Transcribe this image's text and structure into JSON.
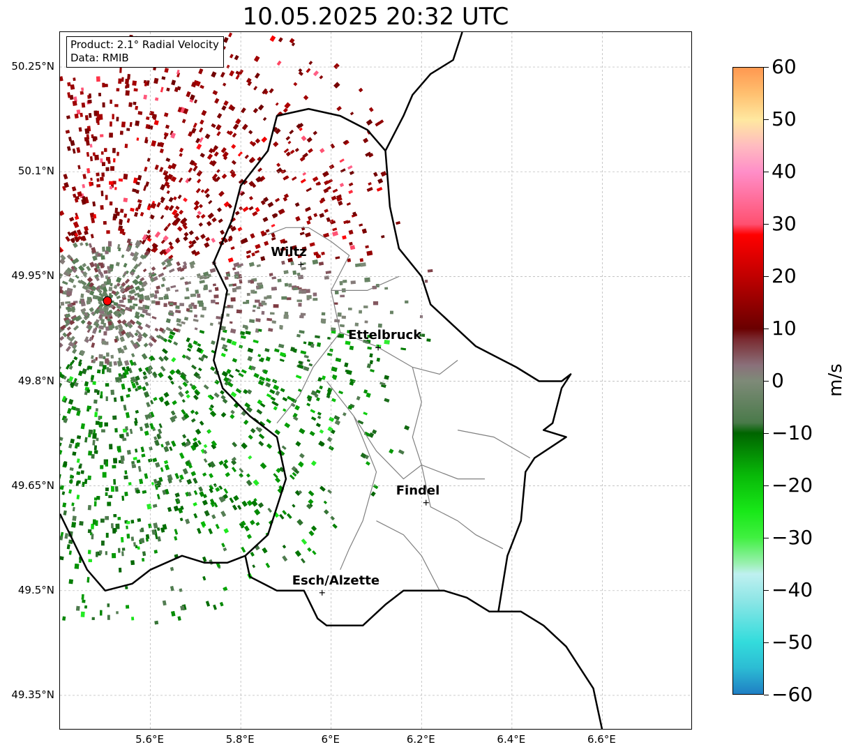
{
  "title": "10.05.2025 20:32 UTC",
  "info": {
    "product": "Product: 2.1° Radial Velocity",
    "source": "Data: RMIB"
  },
  "lat_labels": [
    "50.25°N",
    "50.1°N",
    "49.95°N",
    "49.8°N",
    "49.65°N",
    "49.5°N",
    "49.35°N"
  ],
  "lat_values": [
    50.25,
    50.1,
    49.95,
    49.8,
    49.65,
    49.5,
    49.35
  ],
  "lon_labels": [
    "5.6°E",
    "5.8°E",
    "6°E",
    "6.2°E",
    "6.4°E",
    "6.6°E"
  ],
  "lon_values": [
    5.6,
    5.8,
    6.0,
    6.2,
    6.4,
    6.6
  ],
  "extent": {
    "lon_min": 5.4,
    "lon_max": 6.8,
    "lat_min": 49.3,
    "lat_max": 50.3
  },
  "radar_site": {
    "lon": 5.505,
    "lat": 49.915,
    "color": "#ff0000"
  },
  "cities": [
    {
      "name": "Wiltz",
      "lon": 5.933,
      "lat": 49.967
    },
    {
      "name": "Ettelbruck",
      "lon": 6.104,
      "lat": 49.848
    },
    {
      "name": "Findel",
      "lon": 6.21,
      "lat": 49.626
    },
    {
      "name": "Esch/Alzette",
      "lon": 5.98,
      "lat": 49.497
    }
  ],
  "colorbar": {
    "unit": "m/s",
    "min": -60,
    "max": 60,
    "tick_labels": [
      "60",
      "50",
      "40",
      "30",
      "20",
      "10",
      "0",
      "−10",
      "−20",
      "−30",
      "−40",
      "−50",
      "−60"
    ],
    "tick_values": [
      60,
      50,
      40,
      30,
      20,
      10,
      0,
      -10,
      -20,
      -30,
      -40,
      -50,
      -60
    ],
    "stops": [
      {
        "v": -60,
        "c": "#1f7fc4"
      },
      {
        "v": -55,
        "c": "#2cbcd4"
      },
      {
        "v": -50,
        "c": "#33dcdc"
      },
      {
        "v": -42,
        "c": "#8ee6e6"
      },
      {
        "v": -37,
        "c": "#bff0f0"
      },
      {
        "v": -35,
        "c": "#9af0b0"
      },
      {
        "v": -30,
        "c": "#40f040"
      },
      {
        "v": -25,
        "c": "#18e818"
      },
      {
        "v": -18,
        "c": "#08b808"
      },
      {
        "v": -10,
        "c": "#006400"
      },
      {
        "v": -8,
        "c": "#4a7a4a"
      },
      {
        "v": 0,
        "c": "#7e8a78"
      },
      {
        "v": 3,
        "c": "#8a707a"
      },
      {
        "v": 8,
        "c": "#7a2a30"
      },
      {
        "v": 10,
        "c": "#6a0000"
      },
      {
        "v": 20,
        "c": "#c00000"
      },
      {
        "v": 28,
        "c": "#ff0000"
      },
      {
        "v": 30,
        "c": "#ff5070"
      },
      {
        "v": 40,
        "c": "#ff8ec8"
      },
      {
        "v": 45,
        "c": "#ffbbc0"
      },
      {
        "v": 50,
        "c": "#ffe8a0"
      },
      {
        "v": 55,
        "c": "#ffc070"
      },
      {
        "v": 60,
        "c": "#ff9850"
      }
    ]
  },
  "borders": {
    "country": [
      [
        [
          6.29,
          50.3
        ],
        [
          6.27,
          50.26
        ],
        [
          6.22,
          50.24
        ],
        [
          6.18,
          50.21
        ],
        [
          6.16,
          50.18
        ],
        [
          6.12,
          50.13
        ],
        [
          6.13,
          50.05
        ],
        [
          6.15,
          49.99
        ],
        [
          6.2,
          49.95
        ],
        [
          6.22,
          49.91
        ],
        [
          6.27,
          49.88
        ],
        [
          6.32,
          49.85
        ],
        [
          6.35,
          49.84
        ],
        [
          6.41,
          49.82
        ],
        [
          6.46,
          49.8
        ],
        [
          6.51,
          49.8
        ],
        [
          6.53,
          49.81
        ],
        [
          6.51,
          49.79
        ],
        [
          6.49,
          49.74
        ],
        [
          6.47,
          49.73
        ],
        [
          6.52,
          49.72
        ],
        [
          6.45,
          49.69
        ],
        [
          6.43,
          49.67
        ],
        [
          6.42,
          49.6
        ],
        [
          6.39,
          49.55
        ],
        [
          6.37,
          49.47
        ],
        [
          6.35,
          49.47
        ],
        [
          6.3,
          49.49
        ],
        [
          6.25,
          49.5
        ],
        [
          6.16,
          49.5
        ],
        [
          6.12,
          49.48
        ],
        [
          6.07,
          49.45
        ],
        [
          6.02,
          49.45
        ],
        [
          5.99,
          49.45
        ],
        [
          5.97,
          49.46
        ],
        [
          5.94,
          49.5
        ],
        [
          5.88,
          49.5
        ],
        [
          5.82,
          49.52
        ],
        [
          5.81,
          49.55
        ],
        [
          5.86,
          49.58
        ],
        [
          5.88,
          49.62
        ],
        [
          5.9,
          49.66
        ],
        [
          5.88,
          49.72
        ],
        [
          5.82,
          49.75
        ],
        [
          5.76,
          49.79
        ],
        [
          5.74,
          49.83
        ],
        [
          5.75,
          49.86
        ],
        [
          5.77,
          49.93
        ],
        [
          5.74,
          49.97
        ],
        [
          5.78,
          50.03
        ],
        [
          5.8,
          50.08
        ],
        [
          5.86,
          50.13
        ],
        [
          5.88,
          50.18
        ],
        [
          5.95,
          50.19
        ],
        [
          6.02,
          50.18
        ],
        [
          6.08,
          50.16
        ],
        [
          6.12,
          50.13
        ]
      ],
      [
        [
          6.36,
          49.47
        ],
        [
          6.42,
          49.47
        ],
        [
          6.47,
          49.45
        ],
        [
          6.52,
          49.42
        ],
        [
          6.55,
          49.39
        ],
        [
          6.58,
          49.36
        ],
        [
          6.59,
          49.33
        ],
        [
          6.6,
          49.3
        ]
      ],
      [
        [
          5.4,
          49.61
        ],
        [
          5.43,
          49.57
        ],
        [
          5.46,
          49.53
        ],
        [
          5.5,
          49.5
        ],
        [
          5.56,
          49.51
        ],
        [
          5.6,
          49.53
        ],
        [
          5.67,
          49.55
        ],
        [
          5.72,
          49.54
        ],
        [
          5.77,
          49.54
        ],
        [
          5.81,
          49.55
        ]
      ]
    ],
    "cantons": [
      [
        [
          5.86,
          50.01
        ],
        [
          5.9,
          50.02
        ],
        [
          5.95,
          50.02
        ],
        [
          6.0,
          50.0
        ],
        [
          6.04,
          49.98
        ],
        [
          6.0,
          49.93
        ],
        [
          6.02,
          49.87
        ],
        [
          5.96,
          49.82
        ],
        [
          5.93,
          49.78
        ],
        [
          5.88,
          49.74
        ]
      ],
      [
        [
          6.0,
          49.93
        ],
        [
          6.08,
          49.93
        ],
        [
          6.15,
          49.95
        ]
      ],
      [
        [
          6.02,
          49.87
        ],
        [
          6.1,
          49.85
        ],
        [
          6.18,
          49.82
        ],
        [
          6.24,
          49.81
        ],
        [
          6.28,
          49.83
        ]
      ],
      [
        [
          6.18,
          49.82
        ],
        [
          6.2,
          49.77
        ],
        [
          6.18,
          49.72
        ],
        [
          6.2,
          49.68
        ],
        [
          6.28,
          49.66
        ],
        [
          6.34,
          49.66
        ]
      ],
      [
        [
          5.99,
          49.8
        ],
        [
          6.05,
          49.75
        ],
        [
          6.1,
          49.7
        ],
        [
          6.16,
          49.66
        ],
        [
          6.2,
          49.68
        ]
      ],
      [
        [
          6.05,
          49.75
        ],
        [
          6.1,
          49.67
        ],
        [
          6.07,
          49.6
        ],
        [
          6.04,
          49.56
        ],
        [
          6.02,
          49.53
        ]
      ],
      [
        [
          6.28,
          49.73
        ],
        [
          6.36,
          49.72
        ],
        [
          6.44,
          49.69
        ]
      ],
      [
        [
          6.2,
          49.68
        ],
        [
          6.22,
          49.62
        ],
        [
          6.28,
          49.6
        ],
        [
          6.32,
          49.58
        ],
        [
          6.38,
          49.56
        ]
      ],
      [
        [
          6.1,
          49.6
        ],
        [
          6.16,
          49.58
        ],
        [
          6.2,
          49.55
        ],
        [
          6.24,
          49.5
        ]
      ]
    ]
  }
}
